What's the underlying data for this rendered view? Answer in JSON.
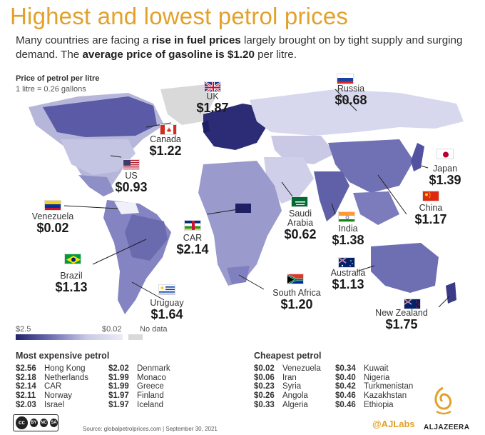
{
  "title": "Highest and lowest petrol prices",
  "subtitle": {
    "part1": "Many countries are facing a ",
    "bold1": "rise in fuel prices",
    "part2": " largely brought on by tight supply and surging demand. The ",
    "bold2": "average price of gasoline is $1.20",
    "part3": " per litre."
  },
  "map_title": "Price of petrol per litre",
  "map_note": "1 litre = 0.26 gallons",
  "legend": {
    "max": "$2.5",
    "min": "$0.02",
    "nodata": "No data",
    "colors": [
      "#23236b",
      "#6f6fb3",
      "#c9c9e6",
      "#ececf7"
    ],
    "nodata_color": "#d9d9d9"
  },
  "countries": {
    "uk": {
      "name": "UK",
      "price": "$1.87"
    },
    "russia": {
      "name": "Russia",
      "price": "$0.68"
    },
    "canada": {
      "name": "Canada",
      "price": "$1.22"
    },
    "us": {
      "name": "US",
      "price": "$0.93"
    },
    "japan": {
      "name": "Japan",
      "price": "$1.39"
    },
    "venezuela": {
      "name": "Venezuela",
      "price": "$0.02"
    },
    "saudi": {
      "name": "Saudi Arabia",
      "price": "$0.62"
    },
    "india": {
      "name": "India",
      "price": "$1.38"
    },
    "china": {
      "name": "China",
      "price": "$1.17"
    },
    "car": {
      "name": "CAR",
      "price": "$2.14"
    },
    "brazil": {
      "name": "Brazil",
      "price": "$1.13"
    },
    "australia": {
      "name": "Australia",
      "price": "$1.13"
    },
    "south_africa": {
      "name": "South Africa",
      "price": "$1.20"
    },
    "uruguay": {
      "name": "Uruguay",
      "price": "$1.64"
    },
    "new_zealand": {
      "name": "New Zealand",
      "price": "$1.75"
    }
  },
  "expensive": {
    "title": "Most expensive petrol",
    "col1": [
      {
        "v": "$2.56",
        "n": "Hong Kong"
      },
      {
        "v": "$2.18",
        "n": "Netherlands"
      },
      {
        "v": "$2.14",
        "n": "CAR"
      },
      {
        "v": "$2.11",
        "n": "Norway"
      },
      {
        "v": "$2.03",
        "n": "Israel"
      }
    ],
    "col2": [
      {
        "v": "$2.02",
        "n": "Denmark"
      },
      {
        "v": "$1.99",
        "n": "Monaco"
      },
      {
        "v": "$1.99",
        "n": "Greece"
      },
      {
        "v": "$1.97",
        "n": "Finland"
      },
      {
        "v": "$1.97",
        "n": "Iceland"
      }
    ]
  },
  "cheapest": {
    "title": "Cheapest petrol",
    "col1": [
      {
        "v": "$0.02",
        "n": "Venezuela"
      },
      {
        "v": "$0.06",
        "n": "Iran"
      },
      {
        "v": "$0.23",
        "n": "Syria"
      },
      {
        "v": "$0.26",
        "n": "Angola"
      },
      {
        "v": "$0.33",
        "n": "Algeria"
      }
    ],
    "col2": [
      {
        "v": "$0.34",
        "n": "Kuwait"
      },
      {
        "v": "$0.40",
        "n": "Nigeria"
      },
      {
        "v": "$0.42",
        "n": "Turkmenistan"
      },
      {
        "v": "$0.46",
        "n": "Kazakhstan"
      },
      {
        "v": "$0.46",
        "n": "Ethiopia"
      }
    ]
  },
  "footer": {
    "source": "Source: globalpetrolprices.com | September 30, 2021",
    "cc_badges": [
      "BY",
      "NC",
      "SA"
    ],
    "ajlabs": "@AJLabs",
    "aljazeera": "ALJAZEERA"
  }
}
